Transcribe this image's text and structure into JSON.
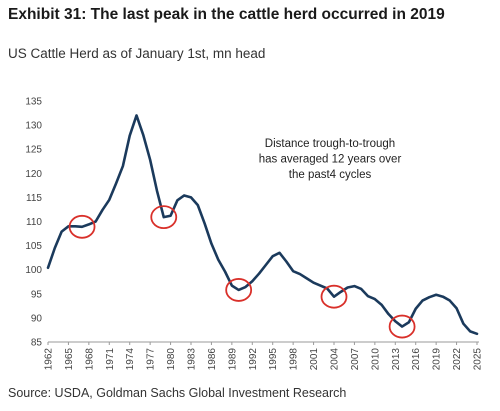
{
  "header": {
    "title": "Exhibit 31: The last peak in the cattle herd occurred in 2019",
    "subtitle": "US Cattle Herd as of January 1st, mn head"
  },
  "footer": {
    "source": "Source: USDA, Goldman Sachs Global Investment Research"
  },
  "colors": {
    "line": "#1b3a5c",
    "circle": "#d9302a"
  },
  "chart_data": {
    "type": "line",
    "title": "",
    "xlabel": "",
    "ylabel": "",
    "ylim": [
      85,
      135
    ],
    "yticks": [
      85,
      90,
      95,
      100,
      105,
      110,
      115,
      120,
      125,
      130,
      135
    ],
    "xlim": [
      1962,
      2025
    ],
    "xticks": [
      1962,
      1965,
      1968,
      1971,
      1974,
      1977,
      1980,
      1983,
      1986,
      1989,
      1992,
      1995,
      1998,
      2001,
      2004,
      2007,
      2010,
      2013,
      2016,
      2019,
      2022,
      2025
    ],
    "grid": false,
    "series": [
      {
        "x": [
          1962,
          1963,
          1964,
          1965,
          1966,
          1967,
          1968,
          1969,
          1970,
          1971,
          1972,
          1973,
          1974,
          1975,
          1976,
          1977,
          1978,
          1979,
          1980,
          1981,
          1982,
          1983,
          1984,
          1985,
          1986,
          1987,
          1988,
          1989,
          1990,
          1991,
          1992,
          1993,
          1994,
          1995,
          1996,
          1997,
          1998,
          1999,
          2000,
          2001,
          2002,
          2003,
          2004,
          2005,
          2006,
          2007,
          2008,
          2009,
          2010,
          2011,
          2012,
          2013,
          2014,
          2015,
          2016,
          2017,
          2018,
          2019,
          2020,
          2021,
          2022,
          2023,
          2024,
          2025
        ],
        "values": [
          100.4,
          104.5,
          107.9,
          109.0,
          109.0,
          108.9,
          109.4,
          110.0,
          112.4,
          114.5,
          117.9,
          121.5,
          127.8,
          132.0,
          127.9,
          122.8,
          116.4,
          110.9,
          111.2,
          114.4,
          115.4,
          115.0,
          113.4,
          109.6,
          105.4,
          102.1,
          99.6,
          96.7,
          95.8,
          96.4,
          97.6,
          99.2,
          101.0,
          102.8,
          103.5,
          101.7,
          99.7,
          99.1,
          98.2,
          97.3,
          96.7,
          96.1,
          94.4,
          95.4,
          96.3,
          96.6,
          96.0,
          94.5,
          93.9,
          92.7,
          90.8,
          89.3,
          88.2,
          89.1,
          91.9,
          93.6,
          94.3,
          94.8,
          94.4,
          93.6,
          92.0,
          88.8,
          87.2,
          86.7
        ]
      }
    ],
    "annotation": {
      "lines": [
        "Distance trough-to-trough",
        "has averaged 12 years over",
        "the past4 cycles"
      ]
    },
    "highlighted_troughs": [
      {
        "x": 1967,
        "y": 108.9
      },
      {
        "x": 1979,
        "y": 110.9
      },
      {
        "x": 1990,
        "y": 95.8
      },
      {
        "x": 2004,
        "y": 94.4
      },
      {
        "x": 2014,
        "y": 88.2
      }
    ]
  }
}
